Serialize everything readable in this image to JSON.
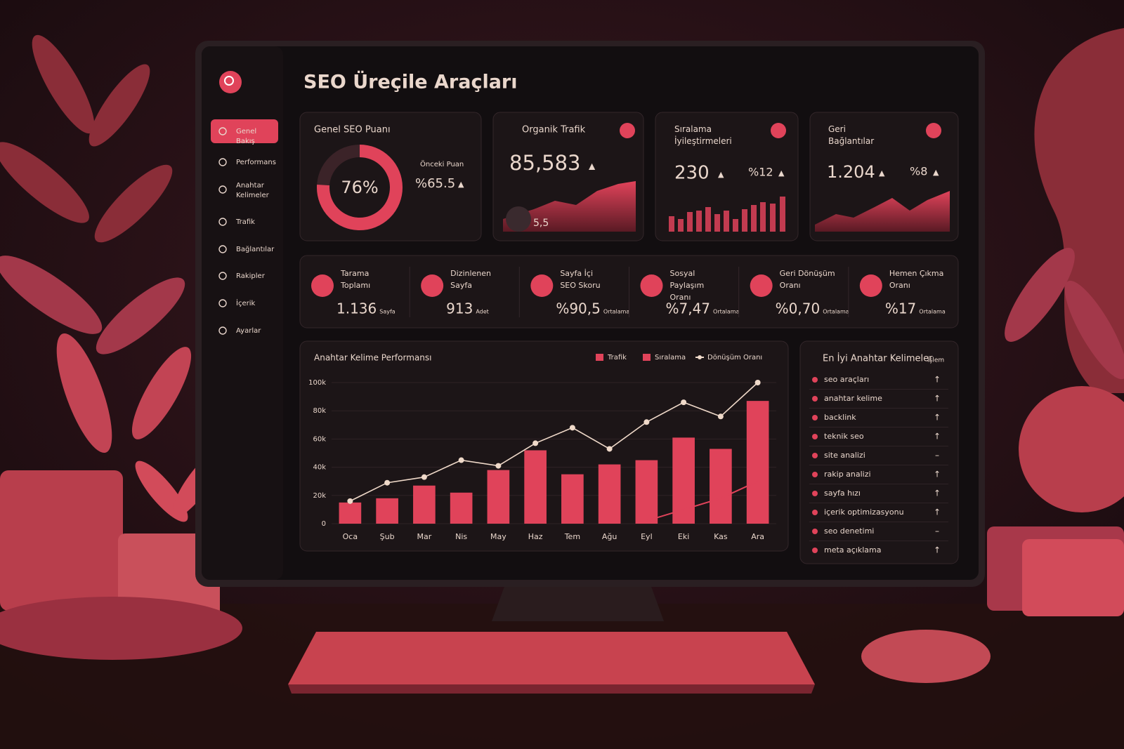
{
  "title": "SEO Üreçile Araçları",
  "sidebar": [
    "Genel Bakış",
    "Performans",
    "Anahtar Kelimeler",
    "Trafik",
    "Bağlantılar",
    "Rakipler",
    "İçerik",
    "Ayarlar"
  ],
  "cards": {
    "score": {
      "title": "Genel SEO Puanı",
      "value": 76,
      "value_label": "76%",
      "previous_label": "Önceki Puan",
      "previous": "%65.5"
    },
    "organic": {
      "title": "Organik Trafik",
      "value": "85,583",
      "users": "5,5"
    },
    "ranking": {
      "title": "Sıralama İyileştirmeleri",
      "value": "230",
      "change": "%12"
    },
    "backlinks": {
      "title": "Geri Bağlantılar",
      "value": "1.204",
      "change": "%8"
    }
  },
  "stats": [
    {
      "label": "Tarama Toplamı",
      "value": "1.136",
      "unit": "Sayfa"
    },
    {
      "label": "Dizinlenen Sayfa",
      "value": "913",
      "unit": "Adet"
    },
    {
      "label": "Sayfa İçi SEO Skoru",
      "value": "%90,5",
      "unit": "Ortalama"
    },
    {
      "label": "Sosyal Paylaşım Oranı",
      "value": "%7,47",
      "unit": "Ortalama"
    },
    {
      "label": "Geri Dönüşüm Oranı",
      "value": "%0,70",
      "unit": "Ortalama"
    },
    {
      "label": "Hemen Çıkma Oranı",
      "value": "%17",
      "unit": "Ortalama"
    }
  ],
  "chart_data": {
    "type": "bar",
    "title": "Anahtar Kelime Performansı",
    "categories": [
      "Oca",
      "Şub",
      "Mar",
      "Nis",
      "May",
      "Haz",
      "Tem",
      "Ağu",
      "Eyl",
      "Eki",
      "Kas",
      "Ara"
    ],
    "series": [
      {
        "name": "Trafik",
        "color": "#e0435a",
        "kind": "bar",
        "values": [
          15000,
          18000,
          27000,
          22000,
          38000,
          52000,
          35000,
          42000,
          45000,
          61000,
          53000,
          87000
        ]
      },
      {
        "name": "Sıralama",
        "color": "#e0435a",
        "kind": "line",
        "values": [
          null,
          null,
          null,
          null,
          null,
          null,
          null,
          null,
          2000,
          10000,
          18000,
          30000
        ]
      },
      {
        "name": "Dönüşüm Oranı",
        "color": "#efd9c9",
        "kind": "line-dots",
        "values": [
          16000,
          29000,
          33000,
          45000,
          41000,
          57000,
          68000,
          53000,
          72000,
          86000,
          76000,
          100000
        ]
      }
    ],
    "ylim": [
      0,
      100000
    ],
    "yticks": [
      0,
      {
        "value": 20000,
        "label": "20k"
      },
      {
        "value": 40000,
        "label": "40k"
      },
      {
        "value": 60000,
        "label": "60k"
      },
      {
        "value": 80000,
        "label": "80k"
      },
      {
        "value": 100000,
        "label": "100k"
      }
    ],
    "grid": true
  },
  "keywords": {
    "title": "En İyi Anahtar Kelimeler",
    "action": "İşlem",
    "items": [
      {
        "name": "seo araçları",
        "trend": "↑"
      },
      {
        "name": "anahtar kelime",
        "trend": "↑"
      },
      {
        "name": "backlink",
        "trend": "↑"
      },
      {
        "name": "teknik seo",
        "trend": "↑"
      },
      {
        "name": "site analizi",
        "trend": "–"
      },
      {
        "name": "rakip analizi",
        "trend": "↑"
      },
      {
        "name": "sayfa hızı",
        "trend": "↑"
      },
      {
        "name": "içerik optimizasyonu",
        "trend": "↑"
      },
      {
        "name": "seo denetimi",
        "trend": "–"
      },
      {
        "name": "meta açıklama",
        "trend": "↑"
      }
    ]
  }
}
